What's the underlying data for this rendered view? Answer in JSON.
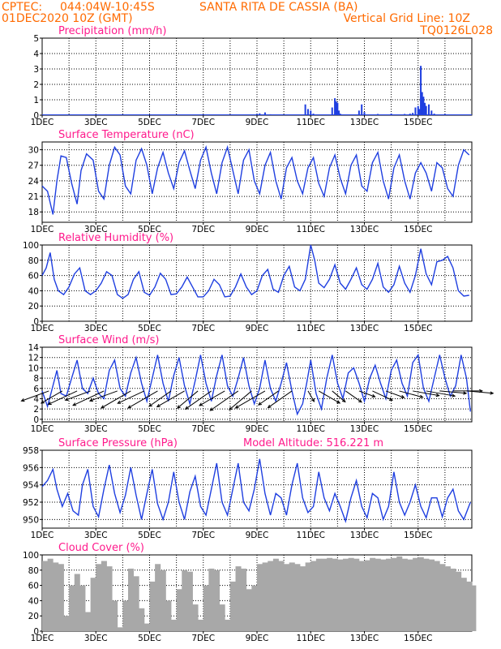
{
  "header": {
    "source": "CPTEC:",
    "coords": "044:04W-10:45S",
    "location": "SANTA RITA DE CASSIA (BA)",
    "run_date": "01DEC2020 10Z (GMT)",
    "grid_note": "Vertical Grid Line: 10Z",
    "model_code": "TQ0126L028"
  },
  "colors": {
    "header": "#ff6a00",
    "panel_title": "#ff1a8c",
    "line": "#1f3fe0",
    "cloud": "#a8a8a8",
    "arrow": "#000000"
  },
  "day_labels": [
    "1DEC",
    "3DEC",
    "5DEC",
    "7DEC",
    "9DEC",
    "11DEC",
    "13DEC",
    "15DEC"
  ],
  "day_label_days": [
    0,
    2,
    4,
    6,
    8,
    10,
    12,
    14
  ],
  "chart_data": [
    {
      "id": "precipitation",
      "type": "bar",
      "title": "Precipitation (mm/h)",
      "xlabel": "",
      "ylabel": "",
      "ylim": [
        0,
        5
      ],
      "yticks": [
        "0",
        "1",
        "2",
        "3",
        "4",
        "5"
      ],
      "x_unit": "days since 01DEC 10Z",
      "x": [
        0.5,
        1.0,
        1.5,
        2.0,
        2.5,
        3.0,
        3.5,
        4.0,
        4.5,
        5.0,
        5.5,
        6.0,
        6.5,
        7.0,
        7.5,
        8.0,
        8.1,
        8.3,
        8.5,
        9.0,
        9.5,
        9.8,
        9.9,
        10.0,
        10.1,
        10.5,
        10.8,
        10.9,
        10.95,
        11.0,
        11.05,
        11.1,
        11.5,
        11.8,
        11.9,
        12.0,
        12.5,
        13.0,
        13.5,
        13.7,
        13.8,
        13.9,
        14.0,
        14.05,
        14.1,
        14.15,
        14.2,
        14.25,
        14.3,
        14.4,
        14.5,
        14.6,
        15.0,
        15.5
      ],
      "values": [
        0.03,
        0.02,
        0.03,
        0.05,
        0.03,
        0.04,
        0.03,
        0.05,
        0.03,
        0.04,
        0.05,
        0.03,
        0.05,
        0.04,
        0.05,
        0.08,
        0.12,
        0.18,
        0.06,
        0.05,
        0.05,
        0.7,
        0.4,
        0.3,
        0.1,
        0.05,
        0.5,
        1.1,
        0.9,
        0.8,
        0.3,
        0.1,
        0.05,
        0.3,
        0.7,
        0.2,
        0.08,
        0.1,
        0.08,
        0.1,
        0.15,
        0.5,
        0.6,
        0.4,
        3.2,
        1.5,
        1.2,
        0.8,
        0.6,
        0.7,
        0.3,
        0.1,
        0.08,
        0.05
      ]
    },
    {
      "id": "temperature",
      "type": "line",
      "title": "Surface Temperature (nC)",
      "xlabel": "",
      "ylabel": "",
      "ylim": [
        16,
        31.5
      ],
      "yticks": [
        "18",
        "21",
        "24",
        "27",
        "30"
      ],
      "ytick_values": [
        18,
        21,
        24,
        27,
        30
      ],
      "x_unit": "days since 01DEC 10Z",
      "x": [
        0,
        0.2,
        0.4,
        0.55,
        0.7,
        0.9,
        1.1,
        1.3,
        1.45,
        1.65,
        1.9,
        2.1,
        2.3,
        2.5,
        2.7,
        2.9,
        3.1,
        3.3,
        3.5,
        3.7,
        3.9,
        4.1,
        4.3,
        4.5,
        4.7,
        4.9,
        5.1,
        5.3,
        5.5,
        5.7,
        5.9,
        6.1,
        6.3,
        6.5,
        6.7,
        6.9,
        7.1,
        7.3,
        7.5,
        7.7,
        7.9,
        8.1,
        8.3,
        8.5,
        8.7,
        8.9,
        9.1,
        9.3,
        9.5,
        9.7,
        9.9,
        10.1,
        10.3,
        10.5,
        10.7,
        10.9,
        11.1,
        11.3,
        11.5,
        11.7,
        11.9,
        12.1,
        12.3,
        12.5,
        12.7,
        12.9,
        13.1,
        13.3,
        13.5,
        13.7,
        13.9,
        14.1,
        14.3,
        14.5,
        14.7,
        14.9,
        15.1,
        15.3,
        15.5,
        15.7,
        15.9
      ],
      "values": [
        23,
        22,
        17.5,
        24,
        28.8,
        28.5,
        23.5,
        19.5,
        26,
        29.2,
        28,
        22,
        20.5,
        27,
        30.5,
        29,
        23,
        21.5,
        28,
        30.2,
        27,
        21.5,
        26.5,
        29.5,
        25.5,
        22.5,
        27.5,
        29.8,
        26,
        22.5,
        28,
        30.5,
        25.5,
        21.5,
        27.5,
        30.5,
        26,
        21.5,
        28,
        30,
        24,
        21.5,
        27,
        29.5,
        24,
        20.5,
        26.5,
        28.5,
        24,
        21.5,
        26.5,
        28.5,
        23.5,
        21,
        26.5,
        29,
        24.5,
        21.5,
        27,
        29,
        23,
        22,
        27.5,
        29.5,
        24,
        20.5,
        26.5,
        29,
        24,
        20.5,
        25.5,
        27.5,
        25.5,
        22,
        27.5,
        26.5,
        22.5,
        21,
        27,
        30,
        29
      ]
    },
    {
      "id": "humidity",
      "type": "line",
      "title": "Relative Humidity (%)",
      "xlabel": "",
      "ylabel": "",
      "ylim": [
        0,
        100
      ],
      "yticks": [
        "0",
        "20",
        "40",
        "60",
        "80",
        "100"
      ],
      "ytick_values": [
        0,
        20,
        40,
        60,
        80,
        100
      ],
      "x_unit": "days since 01DEC 10Z",
      "x": [
        0,
        0.15,
        0.3,
        0.45,
        0.6,
        0.8,
        1.0,
        1.2,
        1.4,
        1.6,
        1.8,
        2.0,
        2.2,
        2.4,
        2.6,
        2.8,
        3.0,
        3.2,
        3.4,
        3.6,
        3.8,
        4.0,
        4.2,
        4.4,
        4.6,
        4.8,
        5.0,
        5.2,
        5.4,
        5.6,
        5.8,
        6.0,
        6.2,
        6.4,
        6.6,
        6.8,
        7.0,
        7.2,
        7.4,
        7.6,
        7.8,
        8.0,
        8.2,
        8.4,
        8.6,
        8.8,
        9.0,
        9.2,
        9.4,
        9.6,
        9.8,
        10.0,
        10.15,
        10.3,
        10.5,
        10.7,
        10.9,
        11.1,
        11.3,
        11.5,
        11.7,
        11.9,
        12.1,
        12.3,
        12.5,
        12.7,
        12.9,
        13.1,
        13.3,
        13.5,
        13.7,
        13.9,
        14.1,
        14.3,
        14.5,
        14.7,
        14.9,
        15.1,
        15.3,
        15.5,
        15.7,
        15.9
      ],
      "values": [
        60,
        70,
        90,
        55,
        40,
        35,
        45,
        62,
        70,
        40,
        35,
        40,
        50,
        65,
        60,
        35,
        30,
        35,
        55,
        65,
        38,
        34,
        45,
        63,
        55,
        35,
        36,
        45,
        58,
        45,
        32,
        32,
        40,
        55,
        48,
        32,
        33,
        45,
        62,
        45,
        35,
        40,
        60,
        68,
        42,
        38,
        60,
        72,
        45,
        40,
        55,
        100,
        80,
        50,
        44,
        55,
        74,
        50,
        42,
        55,
        70,
        48,
        42,
        55,
        76,
        45,
        38,
        48,
        72,
        50,
        38,
        60,
        95,
        62,
        48,
        78,
        80,
        85,
        70,
        40,
        33,
        34
      ]
    },
    {
      "id": "wind",
      "type": "line",
      "title": "Surface Wind (m/s)",
      "xlabel": "",
      "ylabel": "",
      "ylim": [
        -0.5,
        14
      ],
      "yticks": [
        "0",
        "2",
        "4",
        "6",
        "8",
        "10",
        "12",
        "14"
      ],
      "ytick_values": [
        0,
        2,
        4,
        6,
        8,
        10,
        12,
        14
      ],
      "x_unit": "days since 01DEC 10Z",
      "x": [
        0,
        0.2,
        0.4,
        0.55,
        0.7,
        0.9,
        1.1,
        1.3,
        1.5,
        1.7,
        1.9,
        2.1,
        2.3,
        2.5,
        2.7,
        2.9,
        3.1,
        3.3,
        3.5,
        3.7,
        3.9,
        4.1,
        4.3,
        4.5,
        4.7,
        4.9,
        5.1,
        5.3,
        5.5,
        5.7,
        5.9,
        6.1,
        6.3,
        6.5,
        6.7,
        6.9,
        7.1,
        7.3,
        7.5,
        7.7,
        7.9,
        8.1,
        8.3,
        8.5,
        8.7,
        8.9,
        9.1,
        9.3,
        9.5,
        9.7,
        9.85,
        10.0,
        10.2,
        10.4,
        10.6,
        10.8,
        11.0,
        11.2,
        11.4,
        11.6,
        11.8,
        12.0,
        12.2,
        12.4,
        12.6,
        12.8,
        13.0,
        13.2,
        13.4,
        13.6,
        13.8,
        14.0,
        14.2,
        14.4,
        14.6,
        14.8,
        15.0,
        15.2,
        15.4,
        15.6,
        15.8,
        15.95
      ],
      "values": [
        5.5,
        2.5,
        6.5,
        9.5,
        5,
        4.5,
        8,
        11.5,
        6,
        5,
        8,
        5,
        4,
        9.5,
        11.5,
        6,
        4.5,
        9,
        12,
        7,
        3.5,
        8,
        12.5,
        7,
        3.5,
        8.5,
        12,
        6.5,
        3,
        7.5,
        12.5,
        7,
        3.5,
        8.5,
        12.5,
        6.5,
        4.5,
        8,
        12,
        6.5,
        3,
        6,
        11.5,
        6,
        3.5,
        7,
        11,
        5.5,
        1,
        3,
        7,
        11.5,
        5,
        2,
        8,
        12.5,
        7,
        4,
        9,
        10,
        7,
        3.5,
        8,
        10.5,
        7,
        4,
        9.5,
        11.5,
        7,
        4.5,
        11,
        12.5,
        6,
        3.5,
        8,
        12.5,
        8,
        4.5,
        6.5,
        12.5,
        8,
        1.5
      ],
      "arrows": {
        "x": [
          0.25,
          0.75,
          1.3,
          1.8,
          2.3,
          2.8,
          3.3,
          3.8,
          4.3,
          4.8,
          5.3,
          5.8,
          6.3,
          6.8,
          7.3,
          7.8,
          8.3,
          8.8,
          9.3,
          9.9,
          10.3,
          10.8,
          11.3,
          11.8,
          12.3,
          12.8,
          13.3,
          13.8,
          14.3,
          14.8,
          15.3,
          15.8
        ],
        "speed": [
          6,
          5,
          6.5,
          5.5,
          7,
          6,
          7,
          6,
          7,
          5.5,
          6.5,
          5.5,
          6.5,
          6,
          7,
          6,
          7,
          5,
          6,
          2.5,
          5,
          3.5,
          4,
          3.5,
          4.5,
          4,
          5,
          5.5,
          6,
          5.5,
          6,
          5.5
        ],
        "dir_deg": [
          70,
          60,
          65,
          70,
          65,
          70,
          60,
          65,
          60,
          55,
          60,
          50,
          55,
          60,
          55,
          50,
          60,
          55,
          55,
          330,
          300,
          310,
          305,
          290,
          295,
          290,
          285,
          280,
          280,
          275,
          270,
          275
        ]
      }
    },
    {
      "id": "pressure",
      "type": "line",
      "title": "Surface Pressure (hPa)",
      "annotation": "Model Altitude: 516.221 m",
      "xlabel": "",
      "ylabel": "",
      "ylim": [
        949,
        958
      ],
      "yticks": [
        "950",
        "952",
        "954",
        "956",
        "958"
      ],
      "ytick_values": [
        950,
        952,
        954,
        956,
        958
      ],
      "x_unit": "days since 01DEC 10Z",
      "x": [
        0,
        0.2,
        0.4,
        0.55,
        0.75,
        0.95,
        1.15,
        1.35,
        1.5,
        1.7,
        1.9,
        2.1,
        2.3,
        2.5,
        2.7,
        2.9,
        3.1,
        3.3,
        3.5,
        3.7,
        3.9,
        4.1,
        4.3,
        4.5,
        4.7,
        4.9,
        5.1,
        5.3,
        5.5,
        5.7,
        5.9,
        6.1,
        6.3,
        6.5,
        6.7,
        6.9,
        7.1,
        7.3,
        7.5,
        7.7,
        7.9,
        8.1,
        8.3,
        8.5,
        8.7,
        8.9,
        9.1,
        9.3,
        9.5,
        9.7,
        9.9,
        10.1,
        10.3,
        10.5,
        10.7,
        10.9,
        11.1,
        11.3,
        11.5,
        11.7,
        11.9,
        12.1,
        12.3,
        12.5,
        12.7,
        12.9,
        13.1,
        13.3,
        13.5,
        13.7,
        13.9,
        14.1,
        14.3,
        14.5,
        14.7,
        14.9,
        15.1,
        15.3,
        15.5,
        15.7,
        15.95
      ],
      "values": [
        953.8,
        954.5,
        955.8,
        953.5,
        951.5,
        953,
        951,
        950.5,
        954,
        955.8,
        951.5,
        950.3,
        953.5,
        956.3,
        953,
        950.8,
        952.8,
        956,
        952.8,
        950,
        953,
        955.8,
        951.8,
        950,
        952,
        955.5,
        952,
        950,
        953.2,
        955,
        951.5,
        950.5,
        953.5,
        956.5,
        952,
        950.5,
        953.5,
        956.5,
        952,
        951,
        953.5,
        957,
        953,
        950.5,
        953,
        952.5,
        950.5,
        954,
        956.5,
        952.5,
        950.8,
        951.5,
        955.5,
        952.5,
        951,
        953,
        951.5,
        949.8,
        952.5,
        954.5,
        951.5,
        950.2,
        953,
        952.5,
        950,
        951.5,
        955.5,
        952,
        950.5,
        952,
        954,
        951.5,
        950.2,
        952.5,
        952.5,
        950.3,
        952.5,
        953.5,
        951,
        950,
        952
      ]
    },
    {
      "id": "cloud",
      "type": "area",
      "title": "Cloud Cover (%)",
      "xlabel": "",
      "ylabel": "",
      "ylim": [
        0,
        100
      ],
      "yticks": [
        "0",
        "20",
        "40",
        "60",
        "80",
        "100"
      ],
      "ytick_values": [
        0,
        20,
        40,
        60,
        80,
        100
      ],
      "x_unit": "days since 01DEC 10Z",
      "x": [
        0,
        0.2,
        0.4,
        0.6,
        0.8,
        1.0,
        1.2,
        1.4,
        1.6,
        1.8,
        2.0,
        2.2,
        2.4,
        2.6,
        2.8,
        3.0,
        3.2,
        3.4,
        3.6,
        3.8,
        4.0,
        4.2,
        4.4,
        4.6,
        4.8,
        5.0,
        5.2,
        5.4,
        5.6,
        5.8,
        6.0,
        6.2,
        6.4,
        6.6,
        6.8,
        7.0,
        7.2,
        7.4,
        7.6,
        7.8,
        8.0,
        8.2,
        8.4,
        8.6,
        8.8,
        9.0,
        9.2,
        9.4,
        9.6,
        9.8,
        10.0,
        10.2,
        10.4,
        10.6,
        10.8,
        11.0,
        11.2,
        11.4,
        11.6,
        11.8,
        12.0,
        12.2,
        12.4,
        12.6,
        12.8,
        13.0,
        13.2,
        13.4,
        13.6,
        13.8,
        14.0,
        14.2,
        14.4,
        14.6,
        14.8,
        15.0,
        15.2,
        15.4,
        15.6,
        15.8,
        15.95
      ],
      "values": [
        92,
        95,
        90,
        88,
        20,
        60,
        75,
        60,
        25,
        70,
        88,
        92,
        85,
        40,
        5,
        40,
        82,
        72,
        30,
        10,
        65,
        88,
        80,
        40,
        15,
        55,
        80,
        78,
        35,
        15,
        60,
        82,
        80,
        35,
        15,
        65,
        85,
        82,
        55,
        60,
        88,
        90,
        92,
        95,
        92,
        88,
        90,
        88,
        85,
        90,
        92,
        95,
        95,
        96,
        95,
        94,
        95,
        96,
        95,
        92,
        93,
        96,
        95,
        94,
        95,
        96,
        98,
        95,
        94,
        96,
        97,
        95,
        94,
        92,
        88,
        85,
        82,
        78,
        70,
        65,
        60
      ]
    }
  ]
}
